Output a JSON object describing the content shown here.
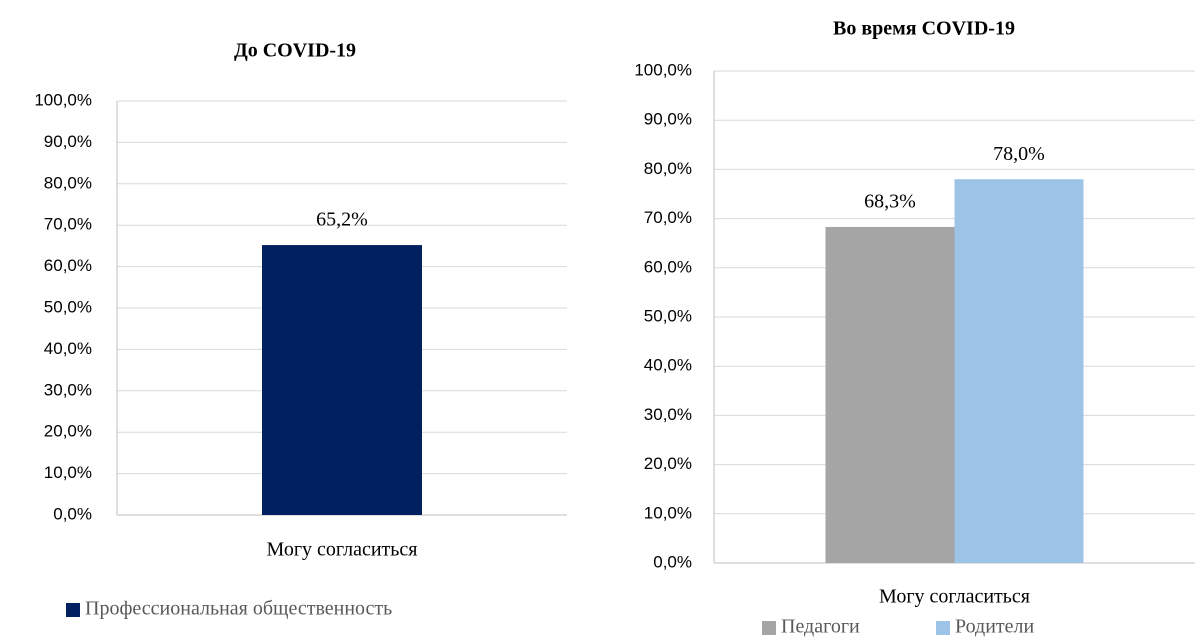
{
  "chart_data": [
    {
      "type": "bar",
      "title": "До COVID-19",
      "categories": [
        "Могу согласиться"
      ],
      "series": [
        {
          "name": "Профессиональная общественность",
          "color": "#002060",
          "values": [
            65.2
          ],
          "value_labels": [
            "65,2%"
          ]
        }
      ],
      "ylim": [
        0,
        100
      ],
      "yticks": [
        {
          "value": 0,
          "label": "0,0%"
        },
        {
          "value": 10,
          "label": "10,0%"
        },
        {
          "value": 20,
          "label": "20,0%"
        },
        {
          "value": 30,
          "label": "30,0%"
        },
        {
          "value": 40,
          "label": "40,0%"
        },
        {
          "value": 50,
          "label": "50,0%"
        },
        {
          "value": 60,
          "label": "60,0%"
        },
        {
          "value": 70,
          "label": "70,0%"
        },
        {
          "value": 80,
          "label": "80,0%"
        },
        {
          "value": 90,
          "label": "90,0%"
        },
        {
          "value": 100,
          "label": "100,0%"
        }
      ],
      "grid": true,
      "legend": "bottom"
    },
    {
      "type": "bar",
      "title": "Во время COVID-19",
      "categories": [
        "Могу согласиться"
      ],
      "series": [
        {
          "name": "Педагоги",
          "color": "#a5a5a5",
          "values": [
            68.3
          ],
          "value_labels": [
            "68,3%"
          ]
        },
        {
          "name": "Родители",
          "color": "#9dc3e6",
          "values": [
            78.0
          ],
          "value_labels": [
            "78,0%"
          ]
        }
      ],
      "ylim": [
        0,
        100
      ],
      "yticks": [
        {
          "value": 0,
          "label": "0,0%"
        },
        {
          "value": 10,
          "label": "10,0%"
        },
        {
          "value": 20,
          "label": "20,0%"
        },
        {
          "value": 30,
          "label": "30,0%"
        },
        {
          "value": 40,
          "label": "40,0%"
        },
        {
          "value": 50,
          "label": "50,0%"
        },
        {
          "value": 60,
          "label": "60,0%"
        },
        {
          "value": 70,
          "label": "70,0%"
        },
        {
          "value": 80,
          "label": "80,0%"
        },
        {
          "value": 90,
          "label": "90,0%"
        },
        {
          "value": 100,
          "label": "100,0%"
        }
      ],
      "grid": true,
      "legend": "bottom"
    }
  ]
}
